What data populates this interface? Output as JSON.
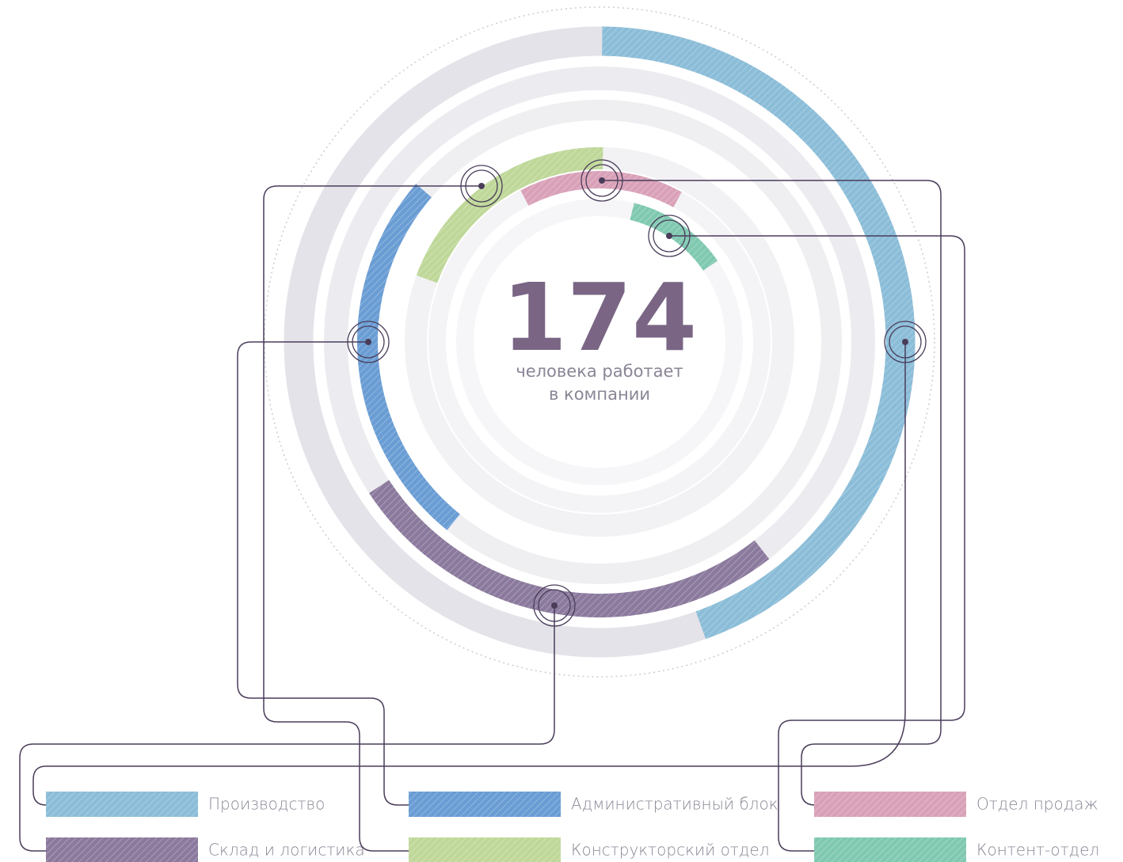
{
  "chart_data": {
    "type": "radial_bar",
    "total": 174,
    "subtitle": [
      "человека работает",
      "в компании"
    ],
    "series": [
      {
        "name": "Производство",
        "color": "#8bbdd8",
        "value": 54
      },
      {
        "name": "Административный блок",
        "color": "#6a9dd4",
        "value": 31
      },
      {
        "name": "Отдел продаж",
        "color": "#d9a1b8",
        "value": 19
      },
      {
        "name": "Склад и логистика",
        "color": "#8b7a9d",
        "value": 32
      },
      {
        "name": "Конструкторский отдел",
        "color": "#bfd899",
        "value": 24
      },
      {
        "name": "Контент-отдел",
        "color": "#80c9b0",
        "value": 14
      }
    ]
  }
}
